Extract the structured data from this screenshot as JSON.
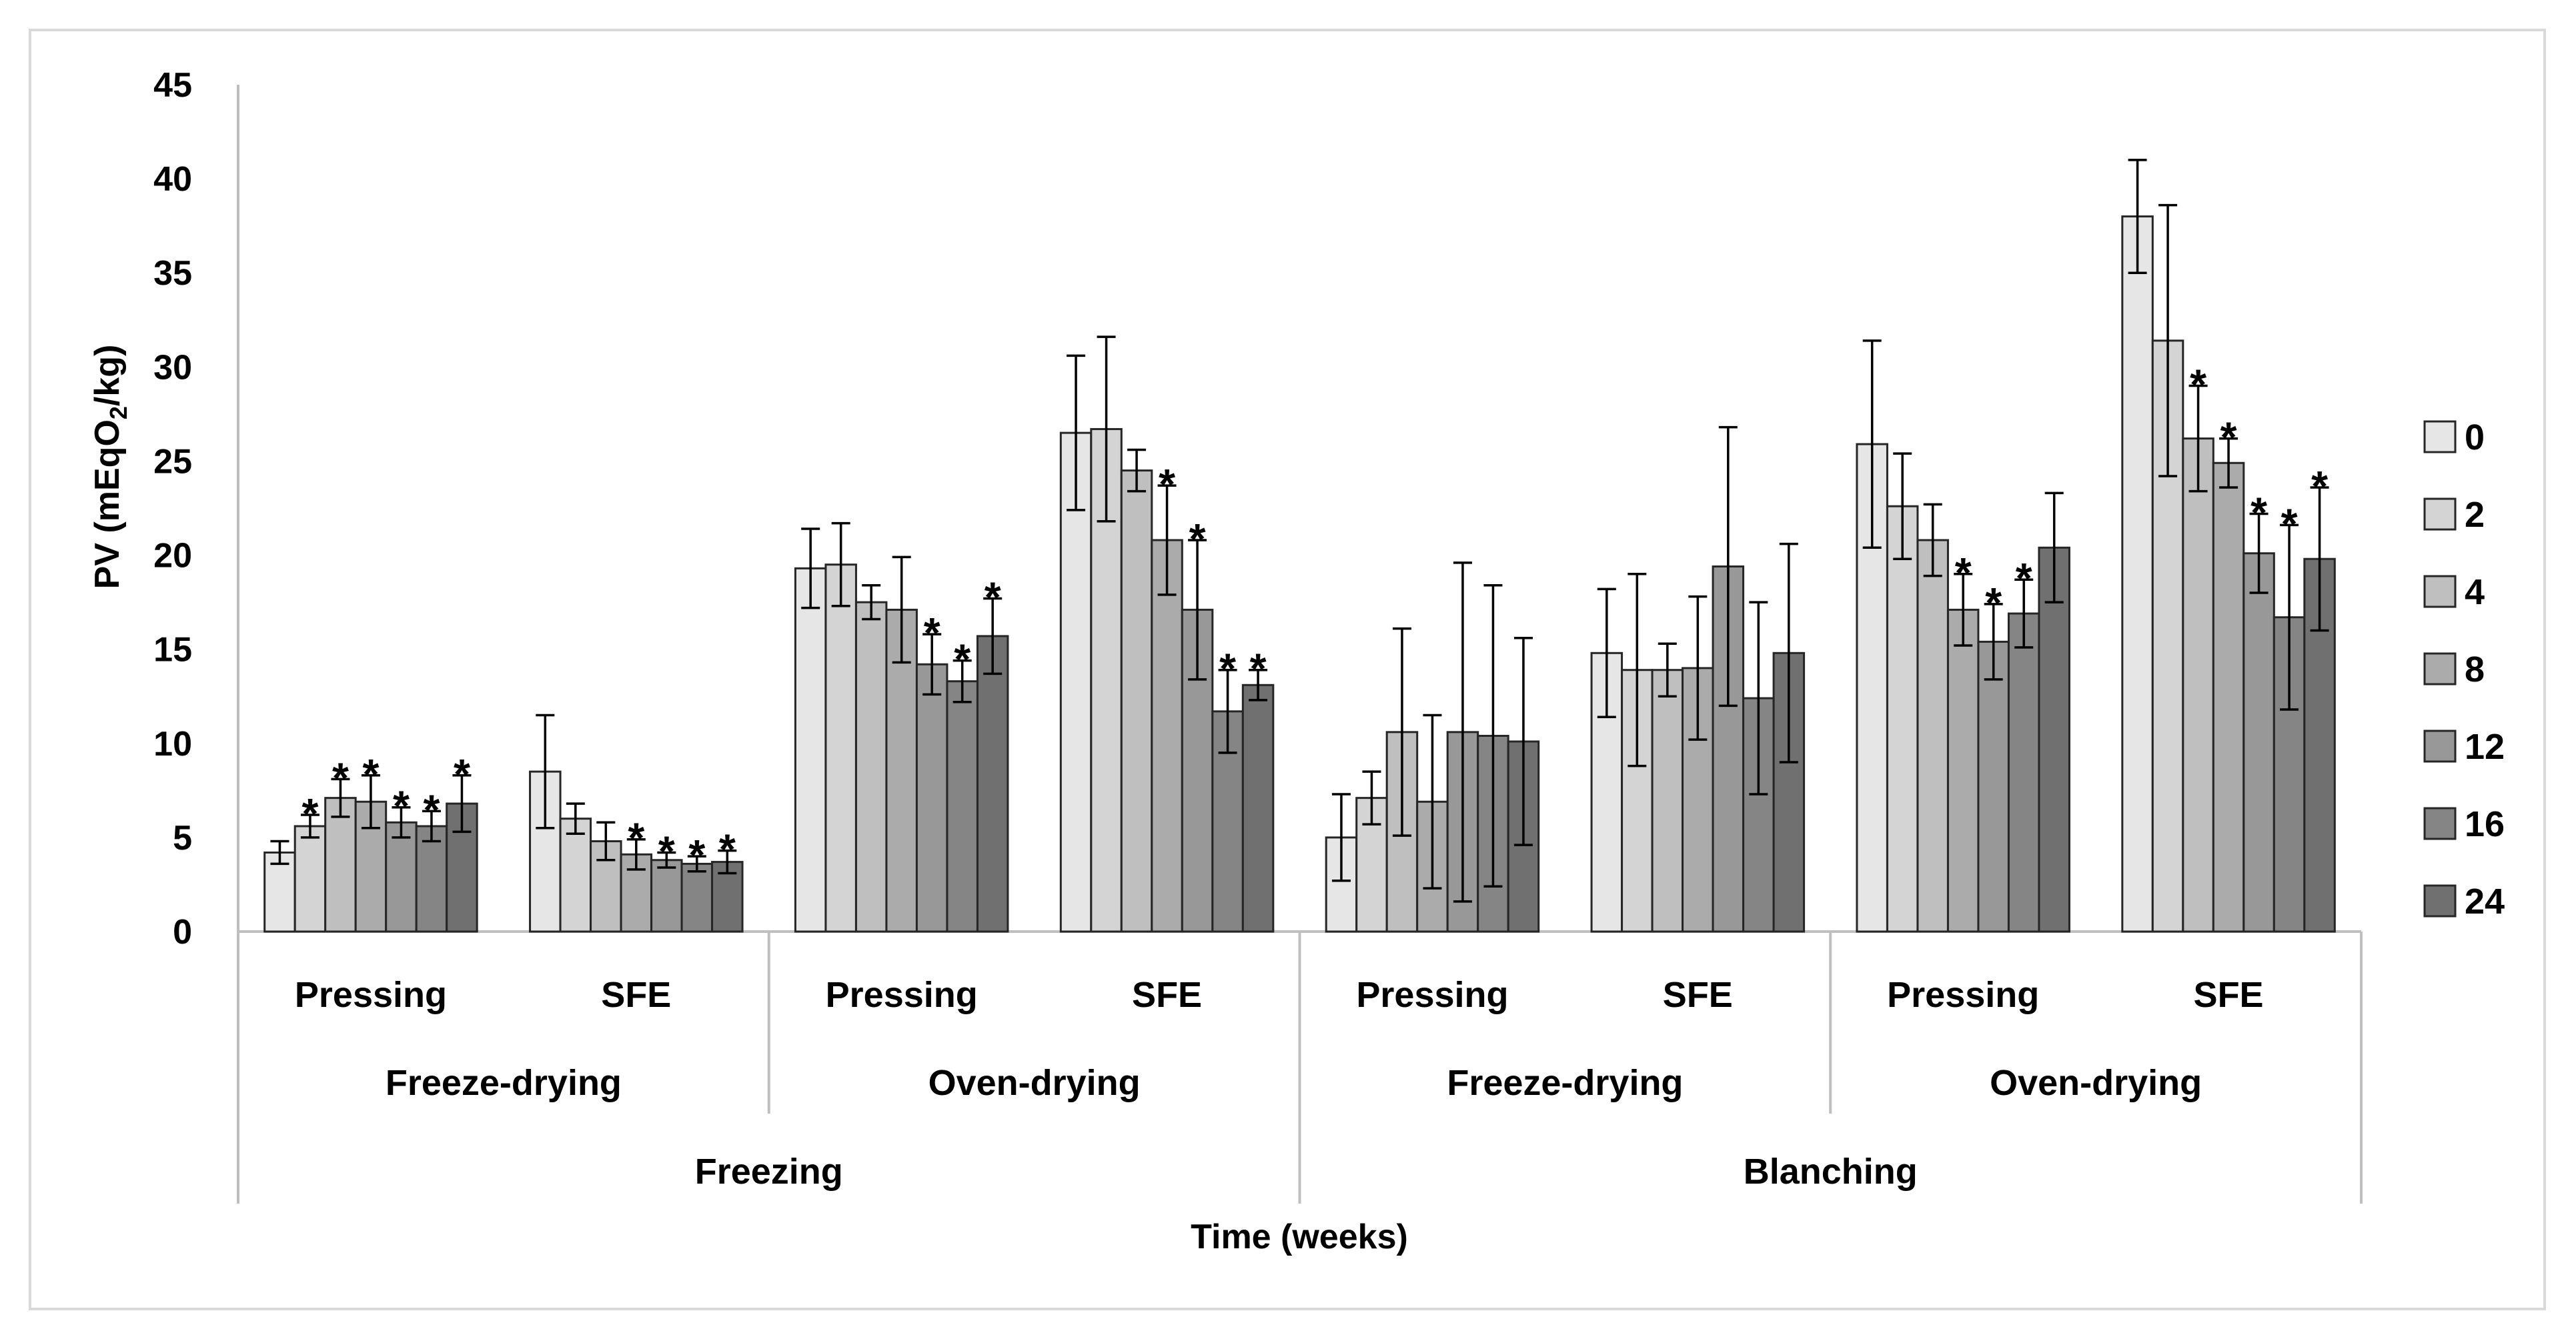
{
  "chart_data": {
    "type": "bar",
    "title": "",
    "xlabel": "Time (weeks)",
    "ylabel_parts": [
      "PV (mEqO",
      "2",
      "/kg)"
    ],
    "ylim": [
      0,
      45
    ],
    "yticks": [
      "0",
      "5",
      "10",
      "15",
      "20",
      "25",
      "30",
      "35",
      "40",
      "45"
    ],
    "grid": false,
    "legend_position": "right",
    "series_names": [
      "0",
      "2",
      "4",
      "8",
      "12",
      "16",
      "24"
    ],
    "series_colors": [
      "#e6e6e6",
      "#d4d4d4",
      "#bfbfbf",
      "#ababab",
      "#989898",
      "#858585",
      "#707070"
    ],
    "outer_groups": [
      "Freezing",
      "Blanching"
    ],
    "middle_groups": [
      "Freeze-drying",
      "Oven-drying",
      "Freeze-drying",
      "Oven-drying"
    ],
    "categories": [
      "Pressing",
      "SFE",
      "Pressing",
      "SFE",
      "Pressing",
      "SFE",
      "Pressing",
      "SFE"
    ],
    "values": [
      [
        4.2,
        5.6,
        7.1,
        6.9,
        5.8,
        5.6,
        6.8
      ],
      [
        8.5,
        6.0,
        4.8,
        4.1,
        3.8,
        3.6,
        3.7
      ],
      [
        19.3,
        19.5,
        17.5,
        17.1,
        14.2,
        13.3,
        15.7
      ],
      [
        26.5,
        26.7,
        24.5,
        20.8,
        17.1,
        11.7,
        13.1
      ],
      [
        5.0,
        7.1,
        10.6,
        6.9,
        10.6,
        10.4,
        10.1
      ],
      [
        14.8,
        13.9,
        13.9,
        14.0,
        19.4,
        12.4,
        14.8
      ],
      [
        25.9,
        22.6,
        20.8,
        17.1,
        15.4,
        16.9,
        20.4
      ],
      [
        38.0,
        31.4,
        26.2,
        24.9,
        20.1,
        16.7,
        19.8
      ]
    ],
    "errors": [
      [
        0.6,
        0.6,
        1.0,
        1.4,
        0.8,
        0.8,
        1.5
      ],
      [
        3.0,
        0.8,
        1.0,
        0.8,
        0.4,
        0.4,
        0.6
      ],
      [
        2.1,
        2.2,
        0.9,
        2.8,
        1.6,
        1.1,
        2.0
      ],
      [
        4.1,
        4.9,
        1.1,
        2.9,
        3.7,
        2.2,
        0.8
      ],
      [
        2.3,
        1.4,
        5.5,
        4.6,
        9.0,
        8.0,
        5.5
      ],
      [
        3.4,
        5.1,
        1.4,
        3.8,
        7.4,
        5.1,
        5.8
      ],
      [
        5.5,
        2.8,
        1.9,
        1.9,
        2.0,
        1.8,
        2.9
      ],
      [
        3.0,
        7.2,
        2.8,
        1.3,
        2.1,
        4.9,
        3.8
      ]
    ],
    "significant": [
      [
        false,
        true,
        true,
        true,
        true,
        true,
        true
      ],
      [
        false,
        false,
        false,
        true,
        true,
        true,
        true
      ],
      [
        false,
        false,
        false,
        false,
        true,
        true,
        true
      ],
      [
        false,
        false,
        false,
        true,
        true,
        true,
        true
      ],
      [
        false,
        false,
        false,
        false,
        false,
        false,
        false
      ],
      [
        false,
        false,
        false,
        false,
        false,
        false,
        false
      ],
      [
        false,
        false,
        false,
        true,
        true,
        true,
        false
      ],
      [
        false,
        false,
        true,
        true,
        true,
        true,
        true
      ]
    ],
    "significance_marker": "*"
  }
}
